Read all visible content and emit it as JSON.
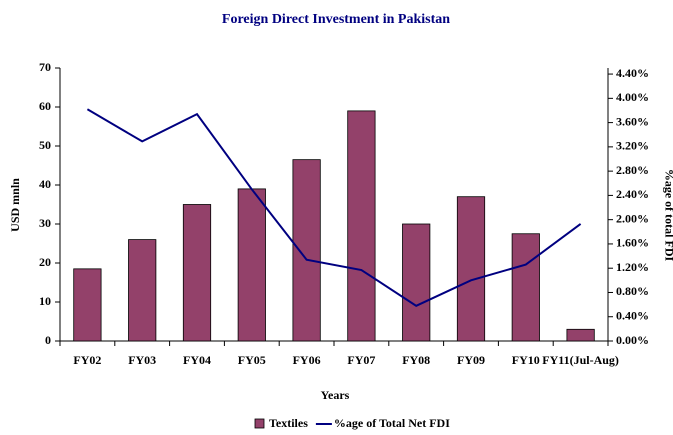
{
  "chart_data": {
    "type": "bar-line",
    "title": "Foreign Direct Investment in Pakistan",
    "x_label": "Years",
    "y_label": "USD mnln",
    "y2_label": "%age of total FDI",
    "categories": [
      "FY02",
      "FY03",
      "FY04",
      "FY05",
      "FY06",
      "FY07",
      "FY08",
      "FY09",
      "FY10",
      "FY11(Jul-Aug)"
    ],
    "series": [
      {
        "name": "Textiles",
        "type": "bar",
        "color": "#93416a",
        "values": [
          18.5,
          26,
          35,
          39,
          46.5,
          59,
          30,
          37,
          27.5,
          3
        ]
      },
      {
        "name": "%age of Total Net FDI",
        "type": "line",
        "axis": "y2",
        "color": "#000080",
        "values": [
          3.82,
          3.29,
          3.74,
          2.5,
          1.34,
          1.17,
          0.58,
          1.0,
          1.26,
          1.93
        ]
      }
    ],
    "ylim": [
      0,
      70
    ],
    "yticks": [
      0,
      10,
      20,
      30,
      40,
      50,
      60,
      70
    ],
    "y2lim": [
      0,
      4.5
    ],
    "y2ticks": [
      {
        "value": 0,
        "label": "0.00%"
      },
      {
        "value": 0.4,
        "label": "0.40%"
      },
      {
        "value": 0.8,
        "label": "0.80%"
      },
      {
        "value": 1.2,
        "label": "1.20%"
      },
      {
        "value": 1.6,
        "label": "1.60%"
      },
      {
        "value": 2.0,
        "label": "2.00%"
      },
      {
        "value": 2.4,
        "label": "2.40%"
      },
      {
        "value": 2.8,
        "label": "2.80%"
      },
      {
        "value": 3.2,
        "label": "3.20%"
      },
      {
        "value": 3.6,
        "label": "3.60%"
      },
      {
        "value": 4.0,
        "label": "4.00%"
      },
      {
        "value": 4.4,
        "label": "4.40%"
      }
    ],
    "legend": "bottom",
    "grid": false
  }
}
